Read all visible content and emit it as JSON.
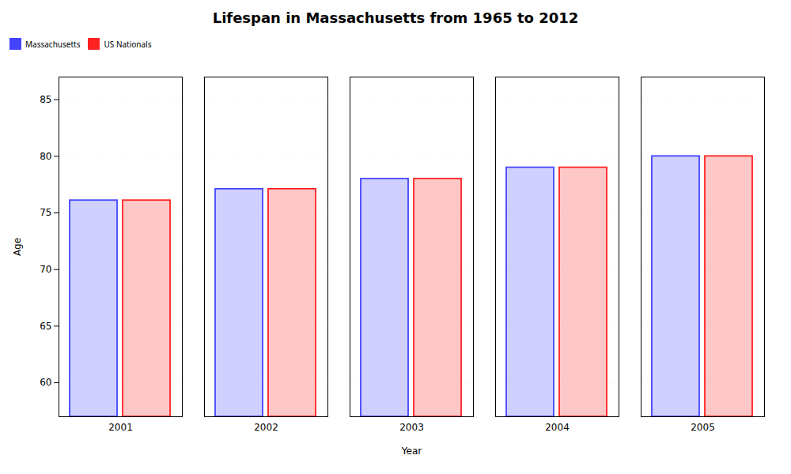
{
  "chart_data": {
    "type": "bar",
    "title": "Lifespan in Massachusetts from 1965 to 2012",
    "xlabel": "Year",
    "ylabel": "Age",
    "categories": [
      "2001",
      "2002",
      "2003",
      "2004",
      "2005"
    ],
    "series": [
      {
        "name": "Massachusetts",
        "color": "#4444ff",
        "values": [
          76.1,
          77.1,
          78.0,
          79.0,
          80.0
        ]
      },
      {
        "name": "US Nationals",
        "color": "#ff2222",
        "values": [
          76.1,
          77.1,
          78.0,
          79.0,
          80.0
        ]
      }
    ],
    "ylim": [
      57,
      87
    ],
    "yticks": [
      60,
      65,
      70,
      75,
      80,
      85
    ],
    "grid": true,
    "legend": "top"
  }
}
